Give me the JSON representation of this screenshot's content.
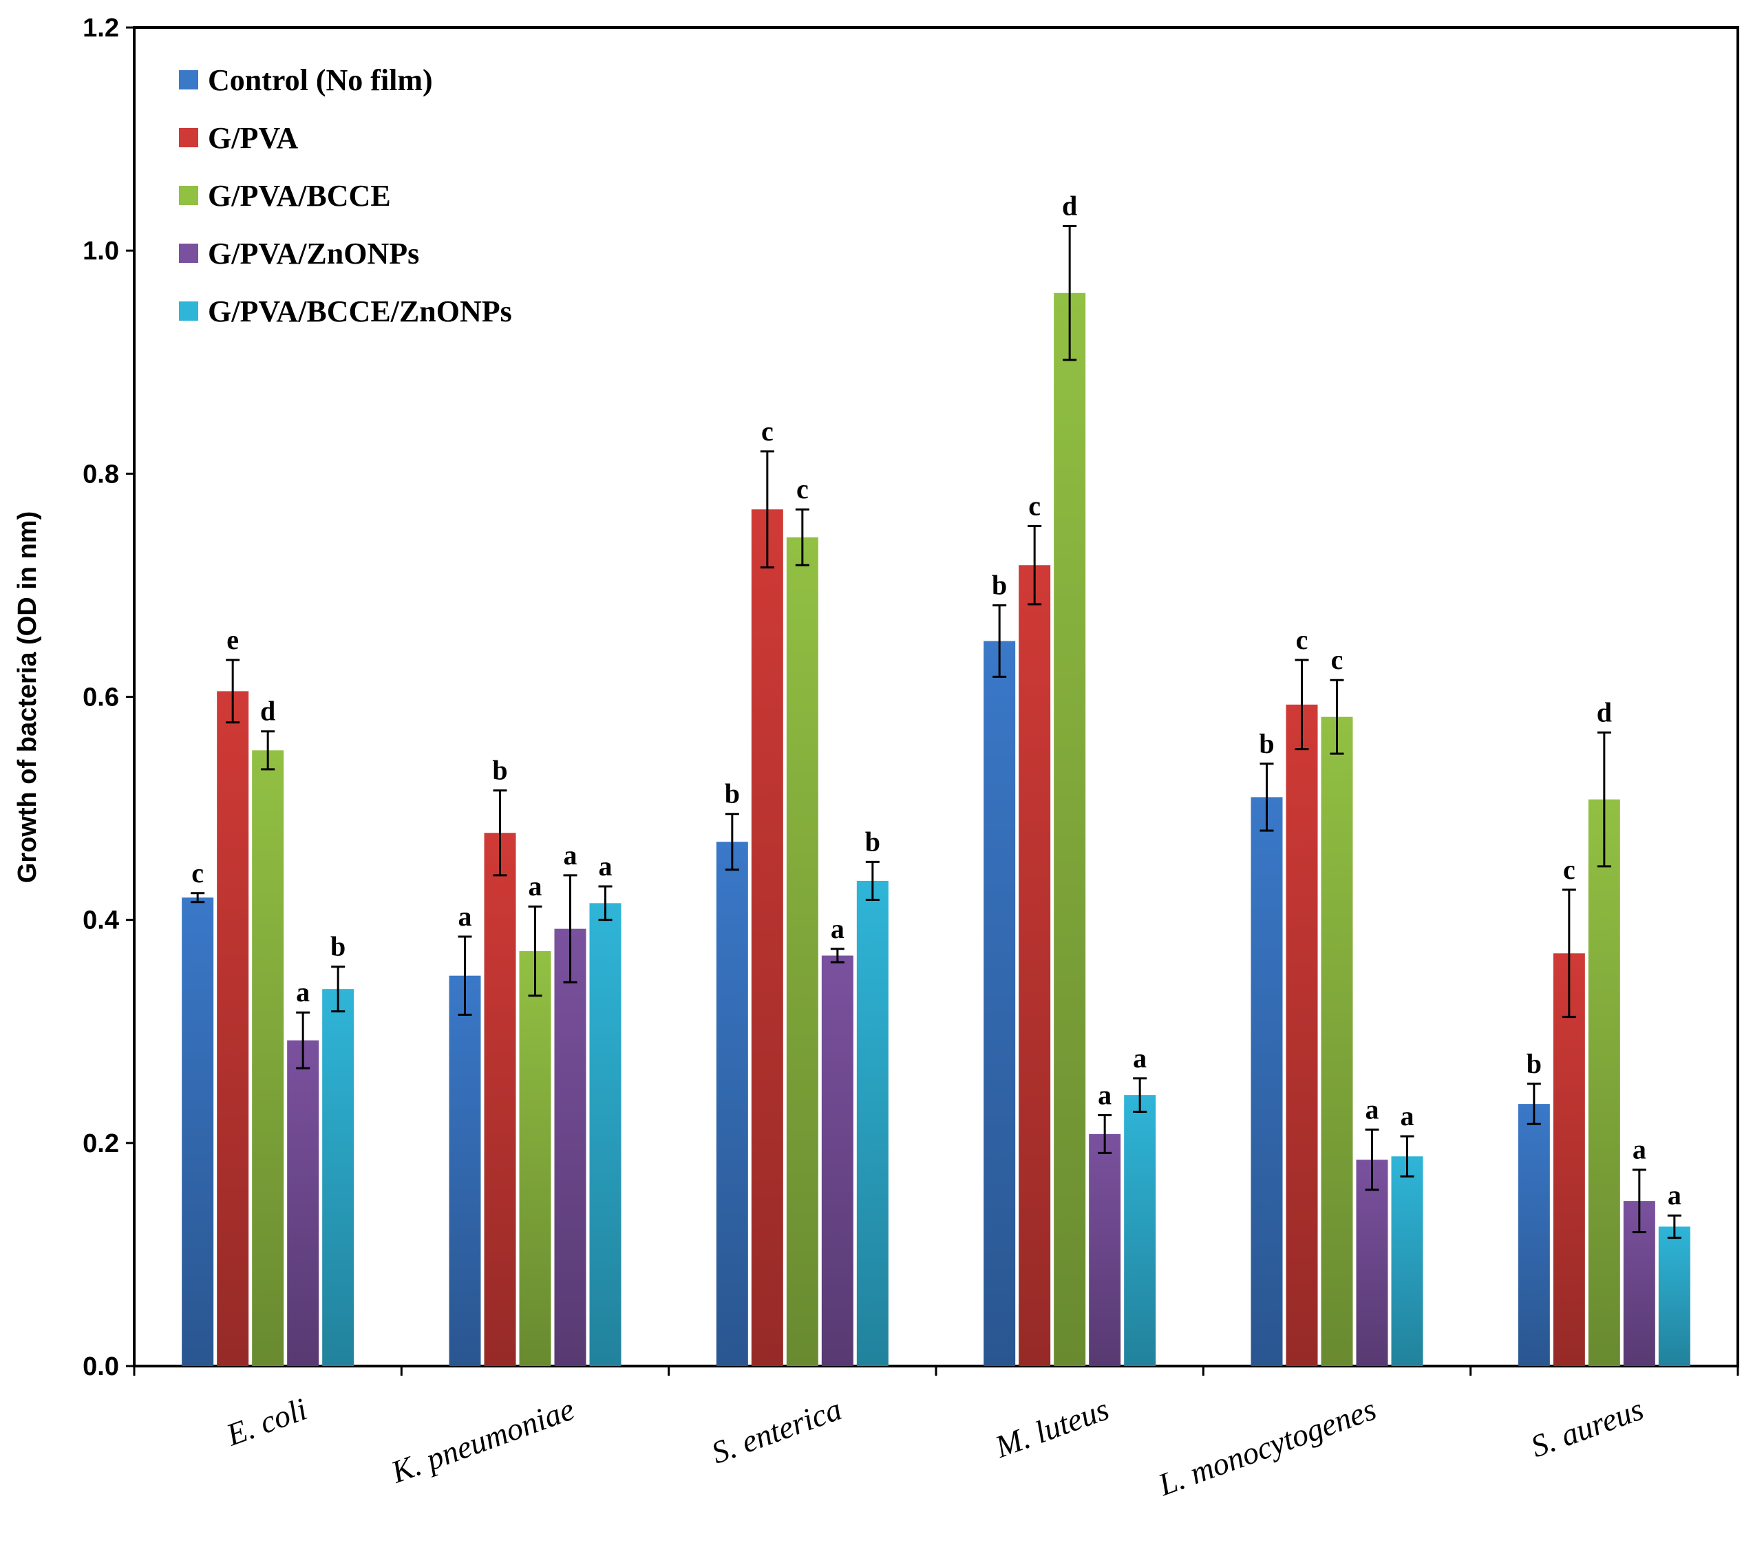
{
  "chart_data": {
    "type": "bar",
    "title": "",
    "xlabel": "",
    "ylabel": "Growth of bacteria (OD in nm)",
    "ylim": [
      0,
      1.2
    ],
    "yticks": [
      "0.0",
      "0.2",
      "0.4",
      "0.6",
      "0.8",
      "1.0",
      "1.2"
    ],
    "categories": [
      "E. coli",
      "K. pneumoniae",
      "S. enterica",
      "M. luteus",
      "L. monocytogenes",
      "S. aureus"
    ],
    "series": [
      {
        "name": "Control (No film)",
        "color": "#3A78C8",
        "values": [
          0.42,
          0.35,
          0.47,
          0.65,
          0.51,
          0.235
        ],
        "errors": [
          0.004,
          0.035,
          0.025,
          0.032,
          0.03,
          0.018
        ],
        "labels": [
          "c",
          "a",
          "b",
          "b",
          "b",
          "b"
        ]
      },
      {
        "name": "G/PVA",
        "color": "#D03A36",
        "values": [
          0.605,
          0.478,
          0.768,
          0.718,
          0.593,
          0.37
        ],
        "errors": [
          0.028,
          0.038,
          0.052,
          0.035,
          0.04,
          0.057
        ],
        "labels": [
          "e",
          "b",
          "c",
          "c",
          "c",
          "c"
        ]
      },
      {
        "name": "G/PVA/BCCE",
        "color": "#92C043",
        "values": [
          0.552,
          0.372,
          0.743,
          0.962,
          0.582,
          0.508
        ],
        "errors": [
          0.017,
          0.04,
          0.025,
          0.06,
          0.033,
          0.06
        ],
        "labels": [
          "d",
          "a",
          "c",
          "d",
          "c",
          "d"
        ]
      },
      {
        "name": "G/PVA/ZnONPs",
        "color": "#7A519E",
        "values": [
          0.292,
          0.392,
          0.368,
          0.208,
          0.185,
          0.148
        ],
        "errors": [
          0.025,
          0.048,
          0.006,
          0.017,
          0.027,
          0.028
        ],
        "labels": [
          "a",
          "a",
          "a",
          "a",
          "a",
          "a"
        ]
      },
      {
        "name": "G/PVA/BCCE/ZnONPs",
        "color": "#2FB5D8",
        "values": [
          0.338,
          0.415,
          0.435,
          0.243,
          0.188,
          0.125
        ],
        "errors": [
          0.02,
          0.015,
          0.017,
          0.015,
          0.018,
          0.01
        ],
        "labels": [
          "b",
          "a",
          "b",
          "a",
          "a",
          "a"
        ]
      }
    ],
    "legend_position": "top-left",
    "grid": false
  }
}
